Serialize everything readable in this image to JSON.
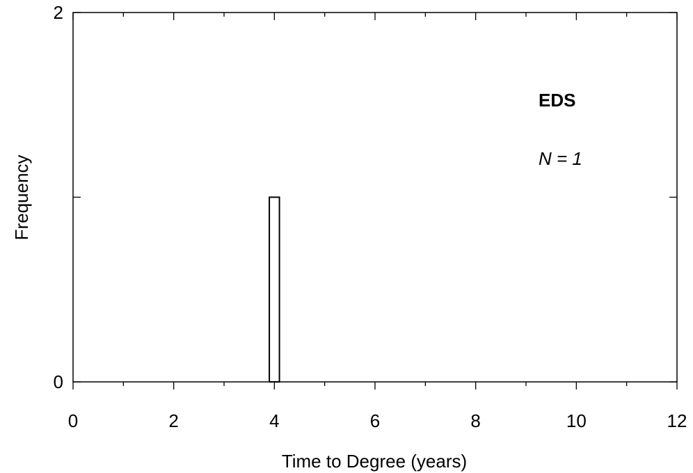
{
  "chart_data": {
    "type": "bar",
    "title": "",
    "xlabel": "Time to Degree (years)",
    "ylabel": "Frequency",
    "xlim": [
      0,
      12
    ],
    "ylim": [
      0,
      2
    ],
    "x_ticks": [
      0,
      2,
      4,
      6,
      8,
      10,
      12
    ],
    "x_tick_labels": [
      "0",
      "2",
      "4",
      "6",
      "8",
      "10",
      "12"
    ],
    "x_minor_ticks": [
      1,
      3,
      5,
      7,
      9,
      11
    ],
    "y_ticks": [
      0,
      1,
      2
    ],
    "y_tick_labels": [
      "0",
      "",
      "2"
    ],
    "bins": [
      {
        "x_start": 3.9,
        "x_end": 4.1,
        "value": 1
      }
    ],
    "grid": false,
    "legend": "none",
    "annotations": {
      "group": "EDS",
      "n_label": "N = 1"
    },
    "colors": {
      "bar_fill": "#ffffff",
      "bar_stroke": "#000000",
      "axis": "#000000"
    }
  }
}
